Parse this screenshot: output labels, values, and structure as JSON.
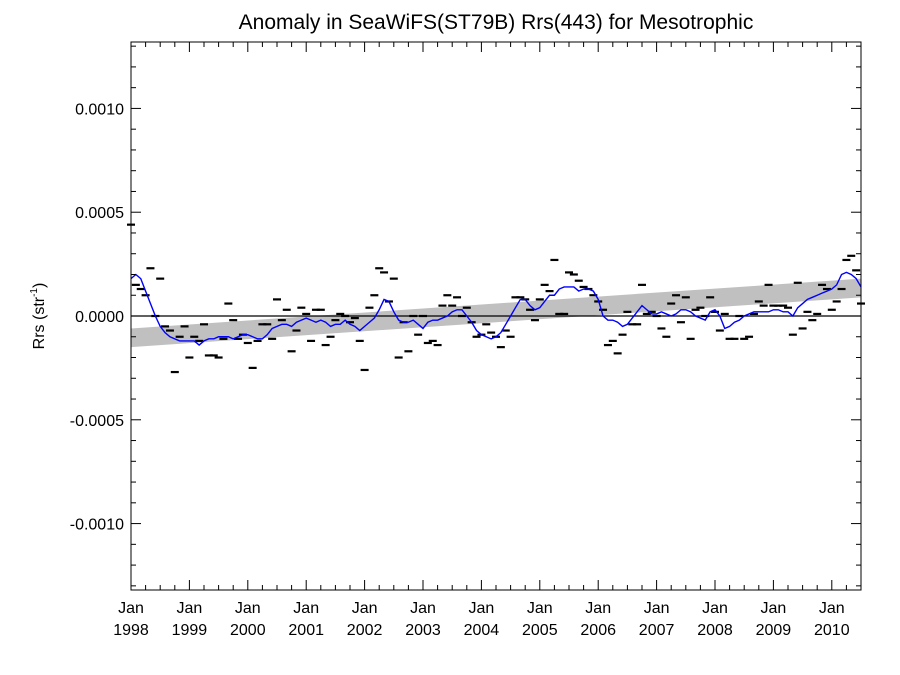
{
  "chart_data": {
    "type": "scatter",
    "title": "Anomaly in SeaWiFS(ST79B) Rrs(443) for Mesotrophic",
    "xlabel": "",
    "ylabel_main": "Rrs (str",
    "ylabel_sup": "-1",
    "ylabel_end": ")",
    "ylim": [
      -0.00132,
      0.00132
    ],
    "xlim": [
      1998.0,
      2010.5
    ],
    "y_ticks": [
      {
        "value": 0.001,
        "label": "0.0010"
      },
      {
        "value": 0.0005,
        "label": "0.0005"
      },
      {
        "value": 0.0,
        "label": "0.0000"
      },
      {
        "value": -0.0005,
        "label": "-0.0005"
      },
      {
        "value": -0.001,
        "label": "-0.0010"
      }
    ],
    "x_ticks": [
      {
        "value": 1998,
        "month": "Jan",
        "year": "1998"
      },
      {
        "value": 1999,
        "month": "Jan",
        "year": "1999"
      },
      {
        "value": 2000,
        "month": "Jan",
        "year": "2000"
      },
      {
        "value": 2001,
        "month": "Jan",
        "year": "2001"
      },
      {
        "value": 2002,
        "month": "Jan",
        "year": "2002"
      },
      {
        "value": 2003,
        "month": "Jan",
        "year": "2003"
      },
      {
        "value": 2004,
        "month": "Jan",
        "year": "2004"
      },
      {
        "value": 2005,
        "month": "Jan",
        "year": "2005"
      },
      {
        "value": 2006,
        "month": "Jan",
        "year": "2006"
      },
      {
        "value": 2007,
        "month": "Jan",
        "year": "2007"
      },
      {
        "value": 2008,
        "month": "Jan",
        "year": "2008"
      },
      {
        "value": 2009,
        "month": "Jan",
        "year": "2009"
      },
      {
        "value": 2010,
        "month": "Jan",
        "year": "2010"
      }
    ],
    "zero_line": true,
    "trend_band": {
      "x": [
        1998.0,
        2010.5
      ],
      "upper": [
        -6e-05,
        0.00018
      ],
      "lower": [
        -0.00015,
        9e-05
      ],
      "color": "#c0c0c0"
    },
    "monthly_anomaly": {
      "marker": "dash",
      "color": "#000000",
      "points": [
        [
          1998.0,
          0.00044
        ],
        [
          1998.083,
          0.00015
        ],
        [
          1998.167,
          0.00013
        ],
        [
          1998.25,
          0.0001
        ],
        [
          1998.333,
          0.00023
        ],
        [
          1998.417,
          0.0
        ],
        [
          1998.5,
          0.00018
        ],
        [
          1998.583,
          -5e-05
        ],
        [
          1998.667,
          -7e-05
        ],
        [
          1998.75,
          -0.00027
        ],
        [
          1998.833,
          -0.0001
        ],
        [
          1998.917,
          -5e-05
        ],
        [
          1999.0,
          -0.0002
        ],
        [
          1999.083,
          -0.0001
        ],
        [
          1999.167,
          -0.00012
        ],
        [
          1999.25,
          -4e-05
        ],
        [
          1999.333,
          -0.00019
        ],
        [
          1999.417,
          -0.00019
        ],
        [
          1999.5,
          -0.0002
        ],
        [
          1999.583,
          -0.00011
        ],
        [
          1999.667,
          6e-05
        ],
        [
          1999.75,
          -2e-05
        ],
        [
          1999.833,
          -0.00011
        ],
        [
          1999.917,
          -9e-05
        ],
        [
          2000.0,
          -0.00013
        ],
        [
          2000.083,
          -0.00025
        ],
        [
          2000.167,
          -0.00012
        ],
        [
          2000.25,
          -4e-05
        ],
        [
          2000.333,
          -4e-05
        ],
        [
          2000.417,
          -0.00011
        ],
        [
          2000.5,
          8e-05
        ],
        [
          2000.583,
          -2e-05
        ],
        [
          2000.667,
          3e-05
        ],
        [
          2000.75,
          -0.00017
        ],
        [
          2000.833,
          -7e-05
        ],
        [
          2000.917,
          4e-05
        ],
        [
          2001.0,
          1e-05
        ],
        [
          2001.083,
          -0.00012
        ],
        [
          2001.167,
          3e-05
        ],
        [
          2001.25,
          3e-05
        ],
        [
          2001.333,
          -0.00014
        ],
        [
          2001.417,
          -0.0001
        ],
        [
          2001.5,
          -2e-05
        ],
        [
          2001.583,
          1e-05
        ],
        [
          2001.667,
          0.0
        ],
        [
          2001.75,
          -3e-05
        ],
        [
          2001.833,
          -1e-05
        ],
        [
          2001.917,
          -0.00012
        ],
        [
          2002.0,
          -0.00026
        ],
        [
          2002.083,
          4e-05
        ],
        [
          2002.167,
          0.0001
        ],
        [
          2002.25,
          0.00023
        ],
        [
          2002.333,
          0.00021
        ],
        [
          2002.417,
          7e-05
        ],
        [
          2002.5,
          0.00018
        ],
        [
          2002.583,
          -0.0002
        ],
        [
          2002.667,
          -3e-05
        ],
        [
          2002.75,
          -0.00017
        ],
        [
          2002.833,
          0.0
        ],
        [
          2002.917,
          -9e-05
        ],
        [
          2003.0,
          0.0
        ],
        [
          2003.083,
          -0.00013
        ],
        [
          2003.167,
          -0.00012
        ],
        [
          2003.25,
          -0.00014
        ],
        [
          2003.333,
          5e-05
        ],
        [
          2003.417,
          0.0001
        ],
        [
          2003.5,
          5e-05
        ],
        [
          2003.583,
          9e-05
        ],
        [
          2003.667,
          0.0
        ],
        [
          2003.75,
          4e-05
        ],
        [
          2003.833,
          -3e-05
        ],
        [
          2003.917,
          -0.0001
        ],
        [
          2004.0,
          -9e-05
        ],
        [
          2004.083,
          -4e-05
        ],
        [
          2004.167,
          -8e-05
        ],
        [
          2004.25,
          -0.0001
        ],
        [
          2004.333,
          -0.00015
        ],
        [
          2004.417,
          -7e-05
        ],
        [
          2004.5,
          -0.0001
        ],
        [
          2004.583,
          9e-05
        ],
        [
          2004.667,
          9e-05
        ],
        [
          2004.75,
          8e-05
        ],
        [
          2004.833,
          3e-05
        ],
        [
          2004.917,
          -2e-05
        ],
        [
          2005.0,
          8e-05
        ],
        [
          2005.083,
          0.00015
        ],
        [
          2005.167,
          0.00012
        ],
        [
          2005.25,
          0.00027
        ],
        [
          2005.333,
          1e-05
        ],
        [
          2005.417,
          1e-05
        ],
        [
          2005.5,
          0.00021
        ],
        [
          2005.583,
          0.0002
        ],
        [
          2005.667,
          0.00017
        ],
        [
          2005.75,
          0.00014
        ],
        [
          2005.833,
          0.00013
        ],
        [
          2005.917,
          0.0001
        ],
        [
          2006.0,
          7e-05
        ],
        [
          2006.083,
          3e-05
        ],
        [
          2006.167,
          -0.00014
        ],
        [
          2006.25,
          -0.00012
        ],
        [
          2006.333,
          -0.00018
        ],
        [
          2006.417,
          -9e-05
        ],
        [
          2006.5,
          2e-05
        ],
        [
          2006.583,
          -4e-05
        ],
        [
          2006.667,
          -4e-05
        ],
        [
          2006.75,
          0.00015
        ],
        [
          2006.833,
          1e-05
        ],
        [
          2006.917,
          2e-05
        ],
        [
          2007.0,
          0.0
        ],
        [
          2007.083,
          -6e-05
        ],
        [
          2007.167,
          -0.0001
        ],
        [
          2007.25,
          6e-05
        ],
        [
          2007.333,
          0.0001
        ],
        [
          2007.417,
          -3e-05
        ],
        [
          2007.5,
          9e-05
        ],
        [
          2007.583,
          -0.00011
        ],
        [
          2007.667,
          3e-05
        ],
        [
          2007.75,
          4e-05
        ],
        [
          2007.833,
          0.0
        ],
        [
          2007.917,
          9e-05
        ],
        [
          2008.0,
          2e-05
        ],
        [
          2008.083,
          -7e-05
        ],
        [
          2008.167,
          1e-05
        ],
        [
          2008.25,
          -0.00011
        ],
        [
          2008.333,
          -0.00011
        ],
        [
          2008.417,
          0.0
        ],
        [
          2008.5,
          -0.00011
        ],
        [
          2008.583,
          -0.0001
        ],
        [
          2008.667,
          1e-05
        ],
        [
          2008.75,
          7e-05
        ],
        [
          2008.833,
          5e-05
        ],
        [
          2008.917,
          0.00015
        ],
        [
          2009.0,
          5e-05
        ],
        [
          2009.083,
          5e-05
        ],
        [
          2009.167,
          5e-05
        ],
        [
          2009.25,
          4e-05
        ],
        [
          2009.333,
          -9e-05
        ],
        [
          2009.417,
          0.00016
        ],
        [
          2009.5,
          -6e-05
        ],
        [
          2009.583,
          2e-05
        ],
        [
          2009.667,
          -2e-05
        ],
        [
          2009.75,
          1e-05
        ],
        [
          2009.833,
          0.00015
        ],
        [
          2009.917,
          0.00013
        ],
        [
          2010.0,
          3e-05
        ],
        [
          2010.083,
          7e-05
        ],
        [
          2010.167,
          0.00013
        ],
        [
          2010.25,
          0.00027
        ],
        [
          2010.333,
          0.00029
        ],
        [
          2010.417,
          0.00022
        ],
        [
          2010.5,
          6e-05
        ]
      ]
    },
    "running_mean": {
      "color": "#0000ff",
      "x": [
        1998.0,
        1998.083,
        1998.167,
        1998.25,
        1998.333,
        1998.417,
        1998.5,
        1998.583,
        1998.667,
        1998.75,
        1998.833,
        1998.917,
        1999.0,
        1999.083,
        1999.167,
        1999.25,
        1999.333,
        1999.417,
        1999.5,
        1999.583,
        1999.667,
        1999.75,
        1999.833,
        1999.917,
        2000.0,
        2000.083,
        2000.167,
        2000.25,
        2000.333,
        2000.417,
        2000.5,
        2000.583,
        2000.667,
        2000.75,
        2000.833,
        2000.917,
        2001.0,
        2001.083,
        2001.167,
        2001.25,
        2001.333,
        2001.417,
        2001.5,
        2001.583,
        2001.667,
        2001.75,
        2001.833,
        2001.917,
        2002.0,
        2002.083,
        2002.167,
        2002.25,
        2002.333,
        2002.417,
        2002.5,
        2002.583,
        2002.667,
        2002.75,
        2002.833,
        2002.917,
        2003.0,
        2003.083,
        2003.167,
        2003.25,
        2003.333,
        2003.417,
        2003.5,
        2003.583,
        2003.667,
        2003.75,
        2003.833,
        2003.917,
        2004.0,
        2004.083,
        2004.167,
        2004.25,
        2004.333,
        2004.417,
        2004.5,
        2004.583,
        2004.667,
        2004.75,
        2004.833,
        2004.917,
        2005.0,
        2005.083,
        2005.167,
        2005.25,
        2005.333,
        2005.417,
        2005.5,
        2005.583,
        2005.667,
        2005.75,
        2005.833,
        2005.917,
        2006.0,
        2006.083,
        2006.167,
        2006.25,
        2006.333,
        2006.417,
        2006.5,
        2006.583,
        2006.667,
        2006.75,
        2006.833,
        2006.917,
        2007.0,
        2007.083,
        2007.167,
        2007.25,
        2007.333,
        2007.417,
        2007.5,
        2007.583,
        2007.667,
        2007.75,
        2007.833,
        2007.917,
        2008.0,
        2008.083,
        2008.167,
        2008.25,
        2008.333,
        2008.417,
        2008.5,
        2008.583,
        2008.667,
        2008.75,
        2008.833,
        2008.917,
        2009.0,
        2009.083,
        2009.167,
        2009.25,
        2009.333,
        2009.417,
        2009.5,
        2009.583,
        2009.667,
        2009.75,
        2009.833,
        2009.917,
        2010.0,
        2010.083,
        2010.167,
        2010.25,
        2010.333,
        2010.417,
        2010.5
      ],
      "y": [
        0.00018,
        0.0002,
        0.00018,
        0.00012,
        6e-05,
        0.0,
        -5e-05,
        -8e-05,
        -0.0001,
        -0.00011,
        -0.00012,
        -0.00012,
        -0.00012,
        -0.00012,
        -0.00014,
        -0.00012,
        -0.00011,
        -0.00011,
        -0.0001,
        -0.0001,
        -0.0001,
        -0.00011,
        -0.0001,
        -9e-05,
        -9e-05,
        -0.0001,
        -0.00011,
        -0.00011,
        -9e-05,
        -6e-05,
        -5e-05,
        -4e-05,
        -4e-05,
        -5e-05,
        -3e-05,
        -2e-05,
        -1e-05,
        -2e-05,
        -3e-05,
        -2e-05,
        -3e-05,
        -5e-05,
        -4e-05,
        -4e-05,
        -2e-05,
        -4e-05,
        -5e-05,
        -7e-05,
        -5e-05,
        -3e-05,
        -1e-05,
        3e-05,
        8e-05,
        7e-05,
        2e-05,
        -2e-05,
        -3e-05,
        -3e-05,
        -2e-05,
        -4e-05,
        -6e-05,
        -3e-05,
        -2e-05,
        -2e-05,
        -1e-05,
        0.0,
        2e-05,
        3e-05,
        3e-05,
        0.0,
        -3e-05,
        -7e-05,
        -9e-05,
        -0.0001,
        -0.00011,
        -0.0001,
        -8e-05,
        -4e-05,
        0.0,
        4e-05,
        8e-05,
        8e-05,
        5e-05,
        3e-05,
        4e-05,
        7e-05,
        0.0001,
        0.0001,
        0.00013,
        0.00014,
        0.00014,
        0.00014,
        0.00012,
        0.00013,
        0.00013,
        0.00012,
        8e-05,
        0.0,
        -2e-05,
        -2e-05,
        -3e-05,
        -5e-05,
        -4e-05,
        -1e-05,
        2e-05,
        5e-05,
        3e-05,
        1e-05,
        1e-05,
        2e-05,
        1e-05,
        0.0,
        1e-05,
        3e-05,
        3e-05,
        2e-05,
        0.0,
        -1e-05,
        -2e-05,
        2e-05,
        3e-05,
        0.0,
        -6e-05,
        -5e-05,
        -3e-05,
        -2e-05,
        0.0,
        1e-05,
        2e-05,
        2e-05,
        2e-05,
        2e-05,
        3e-05,
        3e-05,
        2e-05,
        2e-05,
        0.0,
        4e-05,
        6e-05,
        8e-05,
        9e-05,
        0.0001,
        0.00011,
        0.00012,
        0.00013,
        0.00015,
        0.0002,
        0.00021,
        0.0002,
        0.00018,
        0.00014
      ]
    }
  }
}
